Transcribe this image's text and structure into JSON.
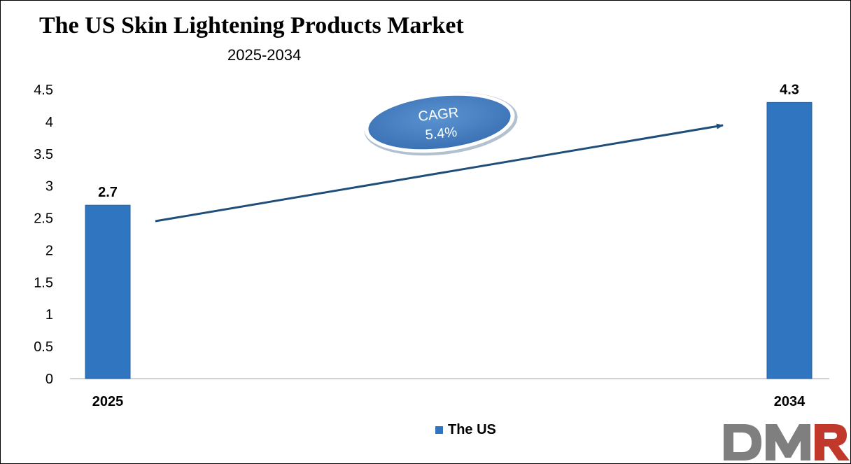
{
  "chart_data": {
    "type": "bar",
    "title": "The US Skin Lightening Products Market",
    "subtitle": "2025-2034",
    "categories": [
      "2025",
      "2034"
    ],
    "series": [
      {
        "name": "The US",
        "values": [
          2.7,
          4.3
        ],
        "color": "#2f75c0"
      }
    ],
    "ylim": [
      0,
      4.5
    ],
    "yticks": [
      "0",
      "0.5",
      "1",
      "1.5",
      "2",
      "2.5",
      "3",
      "3.5",
      "4",
      "4.5"
    ],
    "data_labels": [
      "2.7",
      "4.3"
    ],
    "grid": false,
    "legend_position": "bottom",
    "annotation": {
      "line1": "CAGR",
      "line2": "5.4%",
      "color": "#3f7cc1"
    },
    "arrow_color": "#1f4e79"
  },
  "logo": {
    "text": "DMR",
    "colors": [
      "#7f7f7f",
      "#c0392b"
    ]
  }
}
